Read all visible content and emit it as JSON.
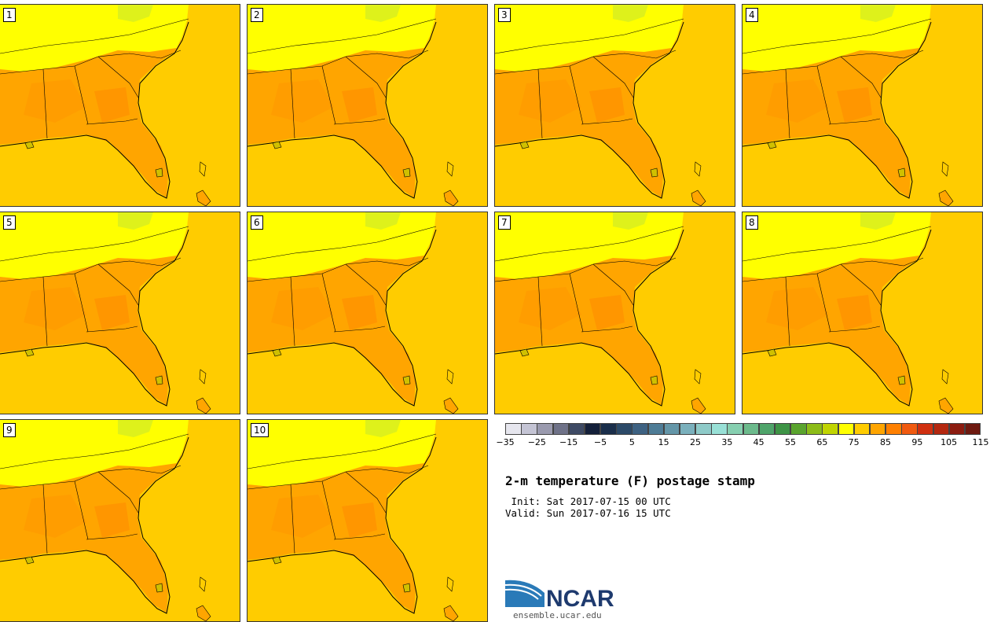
{
  "panels": [
    {
      "label": "1"
    },
    {
      "label": "2"
    },
    {
      "label": "3"
    },
    {
      "label": "4"
    },
    {
      "label": "5"
    },
    {
      "label": "6"
    },
    {
      "label": "7"
    },
    {
      "label": "8"
    },
    {
      "label": "9"
    },
    {
      "label": "10"
    }
  ],
  "colorbar": {
    "colors": [
      "#e6e6ee",
      "#c4c4d4",
      "#9a9aae",
      "#6f7288",
      "#3e4a64",
      "#14203a",
      "#1a2e4a",
      "#2c4a68",
      "#3e6282",
      "#4e7c96",
      "#6496a8",
      "#7ab0bc",
      "#8ecac8",
      "#98e0d6",
      "#86cfb0",
      "#6cba8c",
      "#4fa46a",
      "#3e9446",
      "#5aa42e",
      "#8cbc18",
      "#c0d400",
      "#ffff00",
      "#ffcc00",
      "#ffa500",
      "#ff8000",
      "#f05a10",
      "#d03010",
      "#b42810",
      "#8c1c10",
      "#6e1a10"
    ],
    "tick_labels": [
      "−35",
      "−25",
      "−15",
      "−5",
      "5",
      "15",
      "25",
      "35",
      "45",
      "55",
      "65",
      "75",
      "85",
      "95",
      "105",
      "115"
    ]
  },
  "title": "2-m temperature (F) postage stamp",
  "init_line": " Init: Sat 2017-07-15 00 UTC",
  "valid_line": "Valid: Sun 2017-07-16 15 UTC",
  "logo": {
    "text": "NCAR",
    "url": "ensemble.ucar.edu"
  }
}
